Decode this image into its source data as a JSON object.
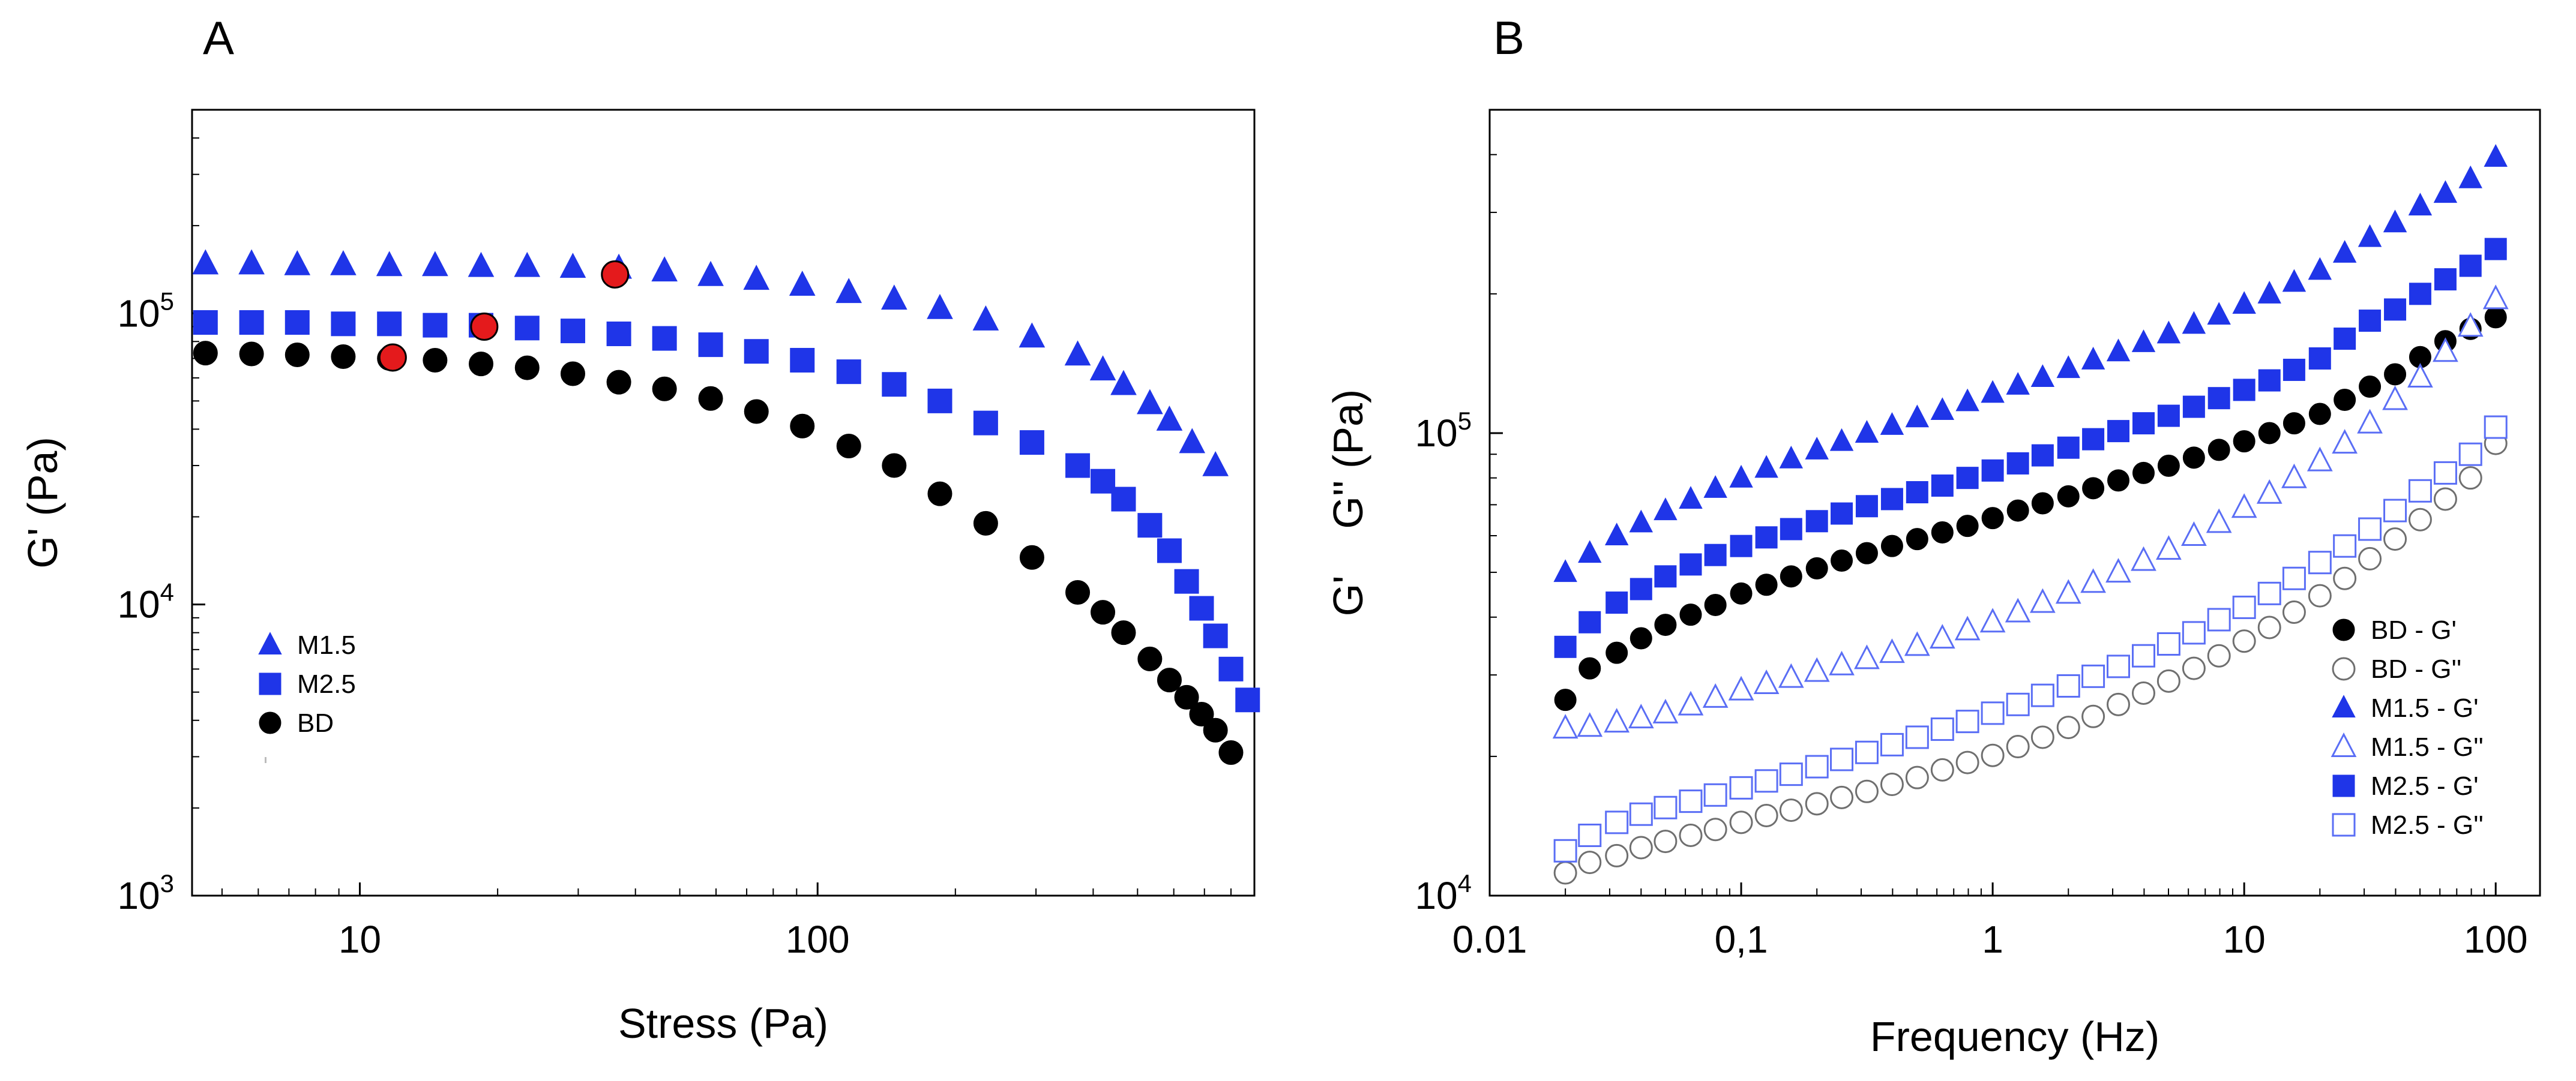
{
  "panels": {
    "a": {
      "letter": "A"
    },
    "b": {
      "letter": "B"
    }
  },
  "colors": {
    "blue": "#1f35e8",
    "black": "#000000",
    "red": "#e41a1c",
    "hollow_blue": "#5a6ef5",
    "hollow_gray": "#6f6f6f"
  },
  "chart_data": [
    {
      "type": "scatter",
      "panel": "A",
      "title": "",
      "xlabel": "Stress (Pa)",
      "ylabel": "G' (Pa)",
      "x_scale": "log",
      "y_scale": "log",
      "xlim": [
        4.3,
        900
      ],
      "ylim": [
        1000,
        500000
      ],
      "x_ticks": [
        {
          "v": 10,
          "label": "10"
        },
        {
          "v": 100,
          "label": "100"
        }
      ],
      "y_ticks": [
        {
          "v": 1000,
          "base": "10",
          "exp": "3"
        },
        {
          "v": 10000,
          "base": "10",
          "exp": "4"
        },
        {
          "v": 100000,
          "base": "10",
          "exp": "5"
        }
      ],
      "grid": false,
      "legend_position": "lower-left",
      "series": [
        {
          "name": "M1.5",
          "marker": "triangle",
          "fill": "#1f35e8",
          "filled": true,
          "x": [
            4.6,
            5.8,
            7.3,
            9.2,
            11.6,
            14.6,
            18.4,
            23.2,
            29.2,
            36.8,
            46.3,
            58.4,
            73.5,
            92.6,
            117,
            147,
            185,
            233,
            294,
            370,
            420,
            466,
            532,
            587,
            658,
            740
          ],
          "y": [
            148000,
            148000,
            147000,
            147000,
            146000,
            146000,
            145000,
            145000,
            144000,
            143000,
            140000,
            135000,
            131000,
            125000,
            118000,
            112000,
            104000,
            95000,
            83000,
            72000,
            64000,
            57000,
            49000,
            43000,
            36000,
            30000
          ]
        },
        {
          "name": "M2.5",
          "marker": "square",
          "fill": "#1f35e8",
          "filled": true,
          "x": [
            4.6,
            5.8,
            7.3,
            9.2,
            11.6,
            14.6,
            18.4,
            23.2,
            29.2,
            36.8,
            46.3,
            58.4,
            73.5,
            92.6,
            117,
            147,
            185,
            233,
            294,
            370,
            420,
            466,
            532,
            587,
            640,
            690,
            740,
            800,
            870
          ],
          "y": [
            93000,
            93000,
            93000,
            92000,
            92000,
            91000,
            91000,
            89000,
            87000,
            85000,
            82000,
            78000,
            74000,
            69000,
            63000,
            57000,
            50000,
            42000,
            36000,
            30000,
            26500,
            23000,
            18700,
            15300,
            12000,
            9700,
            7800,
            6000,
            4700
          ]
        },
        {
          "name": "BD",
          "marker": "circle",
          "fill": "#000000",
          "filled": true,
          "x": [
            4.6,
            5.8,
            7.3,
            9.2,
            11.6,
            14.6,
            18.4,
            23.2,
            29.2,
            36.8,
            46.3,
            58.4,
            73.5,
            92.6,
            117,
            147,
            185,
            233,
            294,
            370,
            420,
            466,
            532,
            587,
            640,
            690,
            740,
            800
          ],
          "y": [
            73000,
            72500,
            72000,
            71000,
            70000,
            69000,
            67000,
            65000,
            62000,
            58000,
            55000,
            51000,
            46000,
            41000,
            35000,
            30000,
            24000,
            19000,
            14500,
            11000,
            9400,
            8000,
            6500,
            5500,
            4800,
            4200,
            3700,
            3100
          ]
        },
        {
          "name": "",
          "marker": "circle",
          "fill": "#e41a1c",
          "filled": true,
          "x": [
            11.8,
            18.7,
            36.1
          ],
          "y": [
            70500,
            90000,
            136000
          ]
        }
      ]
    },
    {
      "type": "scatter",
      "panel": "B",
      "title": "",
      "xlabel": "Frequency (Hz)",
      "ylabel": "G'    G'' (Pa)",
      "x_scale": "log",
      "y_scale": "log",
      "xlim": [
        0.01,
        150
      ],
      "ylim": [
        10000,
        500000
      ],
      "x_ticks": [
        {
          "v": 0.01,
          "label": "0.01"
        },
        {
          "v": 0.1,
          "label": "0,1"
        },
        {
          "v": 1,
          "label": "1"
        },
        {
          "v": 10,
          "label": "10"
        },
        {
          "v": 100,
          "label": "100"
        }
      ],
      "y_ticks": [
        {
          "v": 10000,
          "base": "10",
          "exp": "4"
        },
        {
          "v": 100000,
          "base": "10",
          "exp": "5"
        }
      ],
      "grid": false,
      "legend_position": "lower-right",
      "series": [
        {
          "name": "BD - G'",
          "marker": "circle",
          "fill": "#000000",
          "filled": true,
          "x": [
            0.02,
            0.025,
            0.032,
            0.04,
            0.05,
            0.063,
            0.079,
            0.1,
            0.126,
            0.158,
            0.2,
            0.251,
            0.316,
            0.398,
            0.501,
            0.631,
            0.794,
            1,
            1.26,
            1.58,
            2,
            2.51,
            3.16,
            3.98,
            5.01,
            6.31,
            7.94,
            10,
            12.6,
            15.8,
            20,
            25.1,
            31.6,
            39.8,
            50.1,
            63.1,
            79.4,
            100
          ],
          "y": [
            26500,
            31000,
            33500,
            36000,
            38500,
            40500,
            42500,
            45000,
            47000,
            49000,
            51000,
            53000,
            55000,
            57000,
            59000,
            61000,
            63000,
            65500,
            68000,
            70500,
            73000,
            76000,
            79000,
            82000,
            85000,
            88500,
            92000,
            96000,
            100000,
            105000,
            110000,
            118000,
            126000,
            134000,
            146000,
            158000,
            168000,
            178000
          ]
        },
        {
          "name": "BD - G''",
          "marker": "circle",
          "fill": "#6f6f6f",
          "filled": false,
          "x": [
            0.02,
            0.025,
            0.032,
            0.04,
            0.05,
            0.063,
            0.079,
            0.1,
            0.126,
            0.158,
            0.2,
            0.251,
            0.316,
            0.398,
            0.501,
            0.631,
            0.794,
            1,
            1.26,
            1.58,
            2,
            2.51,
            3.16,
            3.98,
            5.01,
            6.31,
            7.94,
            10,
            12.6,
            15.8,
            20,
            25.1,
            31.6,
            39.8,
            50.1,
            63.1,
            79.4,
            100
          ],
          "y": [
            11200,
            11800,
            12200,
            12700,
            13100,
            13500,
            13900,
            14400,
            14900,
            15300,
            15800,
            16300,
            16800,
            17400,
            18000,
            18700,
            19400,
            20100,
            21000,
            22000,
            23100,
            24400,
            25900,
            27400,
            29100,
            31000,
            33000,
            35500,
            38000,
            41000,
            44500,
            48500,
            53500,
            59000,
            65000,
            72000,
            80000,
            95000
          ]
        },
        {
          "name": "M1.5 - G'",
          "marker": "triangle",
          "fill": "#1f35e8",
          "filled": true,
          "x": [
            0.02,
            0.025,
            0.032,
            0.04,
            0.05,
            0.063,
            0.079,
            0.1,
            0.126,
            0.158,
            0.2,
            0.251,
            0.316,
            0.398,
            0.501,
            0.631,
            0.794,
            1,
            1.26,
            1.58,
            2,
            2.51,
            3.16,
            3.98,
            5.01,
            6.31,
            7.94,
            10,
            12.6,
            15.8,
            20,
            25.1,
            31.6,
            39.8,
            50.1,
            63.1,
            79.4,
            100
          ],
          "y": [
            50000,
            55000,
            60000,
            64000,
            68000,
            72000,
            76000,
            80000,
            84000,
            88000,
            92000,
            96000,
            100000,
            104000,
            108000,
            112000,
            117000,
            122000,
            127000,
            132000,
            138000,
            144000,
            150000,
            157000,
            164000,
            172000,
            180000,
            190000,
            200000,
            212000,
            225000,
            245000,
            265000,
            285000,
            310000,
            330000,
            355000,
            395000
          ]
        },
        {
          "name": "M1.5 - G''",
          "marker": "triangle",
          "fill": "#5a6ef5",
          "filled": false,
          "x": [
            0.02,
            0.025,
            0.032,
            0.04,
            0.05,
            0.063,
            0.079,
            0.1,
            0.126,
            0.158,
            0.2,
            0.251,
            0.316,
            0.398,
            0.501,
            0.631,
            0.794,
            1,
            1.26,
            1.58,
            2,
            2.51,
            3.16,
            3.98,
            5.01,
            6.31,
            7.94,
            10,
            12.6,
            15.8,
            20,
            25.1,
            31.6,
            39.8,
            50.1,
            63.1,
            79.4,
            100
          ],
          "y": [
            23000,
            23200,
            23700,
            24200,
            24800,
            25800,
            26800,
            27800,
            28700,
            29600,
            30500,
            31500,
            32500,
            33500,
            34700,
            36000,
            37500,
            39000,
            41000,
            43000,
            45000,
            47500,
            50000,
            53000,
            56000,
            60000,
            64000,
            69000,
            74000,
            80000,
            87000,
            95000,
            105000,
            118000,
            132000,
            150000,
            170000,
            195000
          ]
        },
        {
          "name": "M2.5 - G'",
          "marker": "square",
          "fill": "#1f35e8",
          "filled": true,
          "x": [
            0.02,
            0.025,
            0.032,
            0.04,
            0.05,
            0.063,
            0.079,
            0.1,
            0.126,
            0.158,
            0.2,
            0.251,
            0.316,
            0.398,
            0.501,
            0.631,
            0.794,
            1,
            1.26,
            1.58,
            2,
            2.51,
            3.16,
            3.98,
            5.01,
            6.31,
            7.94,
            10,
            12.6,
            15.8,
            20,
            25.1,
            31.6,
            39.8,
            50.1,
            63.1,
            79.4,
            100
          ],
          "y": [
            34500,
            39000,
            43000,
            46000,
            49000,
            52000,
            54500,
            57000,
            59500,
            62000,
            64500,
            67000,
            69500,
            72000,
            74500,
            77000,
            80000,
            83000,
            86000,
            89500,
            93000,
            97000,
            101000,
            105000,
            109000,
            114000,
            119000,
            124000,
            130000,
            137000,
            145000,
            160000,
            175000,
            185000,
            200000,
            215000,
            230000,
            250000
          ]
        },
        {
          "name": "M2.5 - G''",
          "marker": "square",
          "fill": "#5a6ef5",
          "filled": false,
          "x": [
            0.02,
            0.025,
            0.032,
            0.04,
            0.05,
            0.063,
            0.079,
            0.1,
            0.126,
            0.158,
            0.2,
            0.251,
            0.316,
            0.398,
            0.501,
            0.631,
            0.794,
            1,
            1.26,
            1.58,
            2,
            2.51,
            3.16,
            3.98,
            5.01,
            6.31,
            7.94,
            10,
            12.6,
            15.8,
            20,
            25.1,
            31.6,
            39.8,
            50.1,
            63.1,
            79.4,
            100
          ],
          "y": [
            12500,
            13500,
            14400,
            15000,
            15500,
            16000,
            16500,
            17100,
            17700,
            18300,
            19000,
            19700,
            20400,
            21200,
            22000,
            22900,
            23800,
            24800,
            25900,
            27100,
            28400,
            29800,
            31300,
            33000,
            35000,
            37000,
            39500,
            42000,
            45000,
            48500,
            52500,
            57000,
            62000,
            68000,
            75000,
            82000,
            90000,
            103000
          ]
        }
      ]
    }
  ]
}
